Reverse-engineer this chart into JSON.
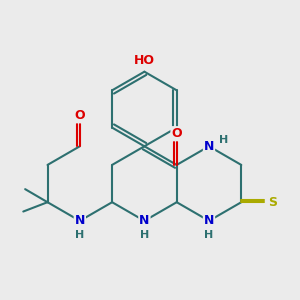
{
  "background_color": "#ebebeb",
  "bond_color": "#2d7070",
  "bond_width": 1.5,
  "atom_colors": {
    "O": "#dd0000",
    "N": "#0000cc",
    "S": "#aaaa00",
    "H": "#2d7070",
    "C": "#2d7070"
  }
}
